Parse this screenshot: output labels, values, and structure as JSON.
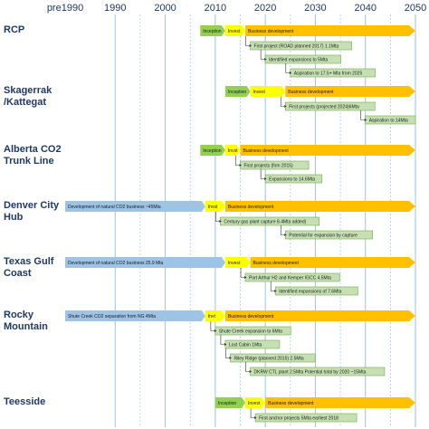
{
  "chart_data": {
    "type": "timeline",
    "axis": {
      "ticks": [
        "pre1990",
        "1990",
        "2000",
        "2010",
        "2020",
        "2030",
        "2040",
        "2050"
      ],
      "years": [
        1980,
        1990,
        2000,
        2010,
        2020,
        2030,
        2040,
        2050
      ]
    },
    "colors": {
      "development": "#9dc3e6",
      "inception": "#92d050",
      "invest": "#ffff00",
      "business": "#ffc000",
      "box": "#c6e0b4",
      "box_border": "#70ad47",
      "axis_text": "#1f3864",
      "grid": "#9dc3e6"
    },
    "regions": [
      {
        "name": "RCP",
        "phases": [
          {
            "kind": "inception",
            "label": "Inception",
            "start": 2007,
            "end": 2012
          },
          {
            "kind": "invest",
            "label": "Invest",
            "start": 2012,
            "end": 2016
          },
          {
            "kind": "business",
            "label": "Business development",
            "start": 2016,
            "end": 2050
          }
        ],
        "milestones": [
          {
            "text": "First project (ROAD planned 2017) 1.1Mta",
            "year": 2017
          },
          {
            "text": "Identified expansions to 5Mta",
            "year": 2020
          },
          {
            "text": "Aspiration to 17.5+ Mta from 2025",
            "year": 2025
          }
        ]
      },
      {
        "name": "Skagerrak /Kattegat",
        "phases": [
          {
            "kind": "inception",
            "label": "Inception",
            "start": 2012,
            "end": 2017
          },
          {
            "kind": "invest",
            "label": "Invest",
            "start": 2017,
            "end": 2024
          },
          {
            "kind": "business",
            "label": "Business development",
            "start": 2024,
            "end": 2050
          }
        ],
        "milestones": [
          {
            "text": "First projects (projected 2024)6Mta",
            "year": 2024
          },
          {
            "text": "Aspiration to 14Mta",
            "year": 2040
          }
        ]
      },
      {
        "name": "Alberta CO2 Trunk Line",
        "phases": [
          {
            "kind": "inception",
            "label": "Inception",
            "start": 2007,
            "end": 2012
          },
          {
            "kind": "invest",
            "label": "Invst",
            "start": 2012,
            "end": 2015
          },
          {
            "kind": "business",
            "label": "Business development",
            "start": 2015,
            "end": 2050
          }
        ],
        "milestones": [
          {
            "text": "First projects (firm 2015)",
            "year": 2015
          },
          {
            "text": "Expansions to 14.6Mta",
            "year": 2020
          }
        ]
      },
      {
        "name": "Denver City Hub",
        "phases": [
          {
            "kind": "development",
            "label": "Development of natural CO2 business ~45Mta",
            "start": 1980,
            "end": 2008
          },
          {
            "kind": "invest",
            "label": "Invst",
            "start": 2008,
            "end": 2012
          },
          {
            "kind": "business",
            "label": "Business development",
            "start": 2012,
            "end": 2050
          }
        ],
        "milestones": [
          {
            "text": "Century gas plant capture 8.4Mta added)",
            "year": 2011
          },
          {
            "text": "Potential for expansion by capture",
            "year": 2024
          }
        ]
      },
      {
        "name": "Texas Gulf Coast",
        "phases": [
          {
            "kind": "development",
            "label": "Development of natural CO2 business 25.9 Mta",
            "start": 1980,
            "end": 2012
          },
          {
            "kind": "invest",
            "label": "Invest",
            "start": 2012,
            "end": 2017
          },
          {
            "kind": "business",
            "label": "Business development",
            "start": 2017,
            "end": 2050
          }
        ],
        "milestones": [
          {
            "text": "Port Arthur H2 and Kemper IGCC 4.5Mta",
            "year": 2016
          },
          {
            "text": "Identified expansions of  7.6Mta",
            "year": 2022
          }
        ]
      },
      {
        "name": "Rocky Mountain",
        "phases": [
          {
            "kind": "development",
            "label": "Shute Creek CO2 separation from NG 4Mta",
            "start": 1980,
            "end": 2008
          },
          {
            "kind": "invest",
            "label": "Invt",
            "start": 2008,
            "end": 2012
          },
          {
            "kind": "business",
            "label": "Business development",
            "start": 2012,
            "end": 2050
          }
        ],
        "milestones": [
          {
            "text": "Shute Creek expansion to 6Mta",
            "year": 2010
          },
          {
            "text": "Lost Cabin 1Mta",
            "year": 2012
          },
          {
            "text": "Riley Ridge (planned 2015) 2.5Mta",
            "year": 2013
          },
          {
            "text": "DKRW CTL plant 2.5Mta  Potential total by 2020  ~15Mta",
            "year": 2017
          }
        ]
      },
      {
        "name": "Teesside",
        "phases": [
          {
            "kind": "inception",
            "label": "Inception",
            "start": 2010,
            "end": 2016
          },
          {
            "kind": "invest",
            "label": "Invest",
            "start": 2016,
            "end": 2020
          },
          {
            "kind": "business",
            "label": "Business development",
            "start": 2020,
            "end": 2050
          }
        ],
        "milestones": [
          {
            "text": "First anchor projects 5Mta earliest 2018",
            "year": 2018
          }
        ]
      }
    ]
  }
}
